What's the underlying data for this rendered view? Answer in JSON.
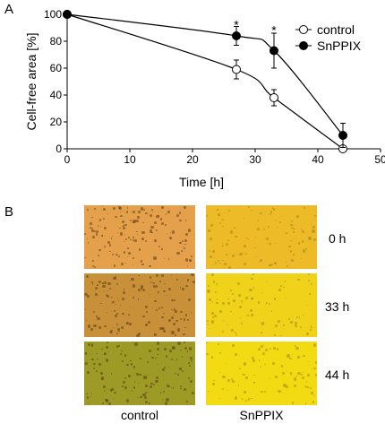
{
  "panels": {
    "a": "A",
    "b": "B"
  },
  "chart_data": {
    "type": "line",
    "xlabel": "Time [h]",
    "ylabel": "Cell-free area [%]",
    "xlim": [
      0,
      50
    ],
    "ylim": [
      0,
      100
    ],
    "xticks": [
      0,
      10,
      20,
      30,
      40,
      50
    ],
    "yticks": [
      0,
      20,
      40,
      60,
      80,
      100
    ],
    "grid": false,
    "legend_position": "top-right",
    "series": [
      {
        "name": "control",
        "marker": "open-circle",
        "x": [
          0,
          27,
          33,
          44
        ],
        "y": [
          100,
          59,
          38,
          0
        ],
        "err": [
          0,
          7,
          6,
          0
        ]
      },
      {
        "name": "SnPPIX",
        "marker": "filled-circle",
        "x": [
          0,
          27,
          33,
          44
        ],
        "y": [
          100,
          84,
          73,
          10
        ],
        "err": [
          0,
          7,
          13,
          9
        ]
      }
    ],
    "annotations": [
      {
        "text": "*",
        "x": 27,
        "y": 93
      },
      {
        "text": "*",
        "x": 33,
        "y": 89
      }
    ]
  },
  "micrographs": {
    "columns": [
      "control",
      "SnPPIX"
    ],
    "rows": [
      "0 h",
      "33 h",
      "44 h"
    ],
    "colors": {
      "control": [
        "#e4a04a",
        "#c89139",
        "#9e9a26"
      ],
      "SnPPIX": [
        "#eebb28",
        "#f1d21a",
        "#f2db12"
      ]
    }
  }
}
